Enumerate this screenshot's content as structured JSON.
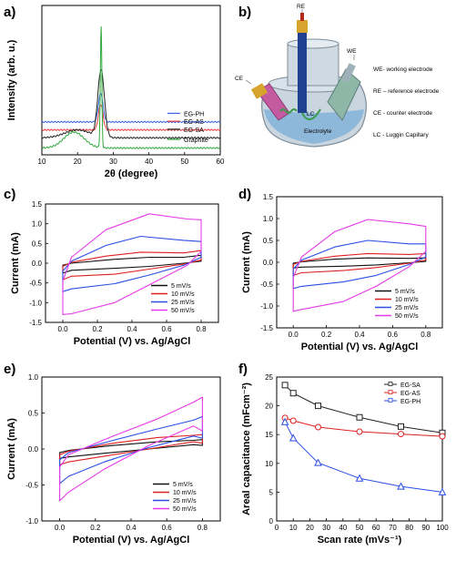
{
  "figure": {
    "panels": {
      "a": "a)",
      "b": "b)",
      "c": "c)",
      "d": "d)",
      "e": "e)",
      "f": "f)"
    },
    "schematic": {
      "RE": "RE",
      "WE": "WE",
      "CE": "CE",
      "LC": "LC",
      "electrolyte": "Electrolyte",
      "legend": [
        "WE- working electrode",
        "RE – reference electrode",
        "CE - counter electrode",
        "LC - Luggin Capillary"
      ]
    }
  },
  "chart_data": [
    {
      "id": "a",
      "type": "line",
      "xlabel": "2θ (degree)",
      "ylabel": "Intensity (arb. u.)",
      "xlim": [
        10,
        60
      ],
      "xticks": [
        10,
        20,
        30,
        40,
        50,
        60
      ],
      "yticks_shown": false,
      "series": [
        {
          "name": "EG-PH",
          "color": "#3a64e6",
          "baseline": 0.92,
          "peaks": [
            {
              "x": 26.5,
              "h": 0.9,
              "w": 0.9
            }
          ],
          "bumps": []
        },
        {
          "name": "EG-AS",
          "color": "#e23b3b",
          "baseline": 0.67,
          "peaks": [
            {
              "x": 26.5,
              "h": 0.8,
              "w": 0.9
            }
          ],
          "bumps": []
        },
        {
          "name": "EG-SA",
          "color": "#222222",
          "baseline": 0.42,
          "peaks": [
            {
              "x": 26.6,
              "h": 2.1,
              "w": 1.3
            }
          ],
          "bumps": [
            {
              "x": 20,
              "h": 0.25,
              "w": 5
            }
          ]
        },
        {
          "name": "Graphite",
          "color": "#2eaa3a",
          "baseline": 0.1,
          "peaks": [
            {
              "x": 26.6,
              "h": 3.8,
              "w": 0.3
            }
          ],
          "bumps": [
            {
              "x": 19,
              "h": 0.5,
              "w": 4
            }
          ]
        }
      ]
    },
    {
      "id": "c",
      "type": "line",
      "xlabel": "Potential (V) vs. Ag/AgCl",
      "ylabel": "Current (mA)",
      "xlim": [
        -0.1,
        0.9
      ],
      "ylim": [
        -1.5,
        1.5
      ],
      "xticks": [
        0.0,
        0.2,
        0.4,
        0.6,
        0.8
      ],
      "yticks": [
        -1.5,
        -1.0,
        -0.5,
        0.0,
        0.5,
        1.0,
        1.5
      ],
      "legend_position": "bottom-right",
      "series": [
        {
          "name": "5 mV/s",
          "color": "#111111",
          "loop": {
            "x0": 0.0,
            "x1": 0.8,
            "jump0": [
              -0.25,
              -0.05
            ],
            "jump1": [
              0.05,
              0.2
            ],
            "upper": [
              [
                0.05,
                0.0
              ],
              [
                0.3,
                0.1
              ],
              [
                0.5,
                0.15
              ],
              [
                0.7,
                0.15
              ]
            ],
            "lower": [
              [
                0.7,
                0.0
              ],
              [
                0.5,
                -0.08
              ],
              [
                0.3,
                -0.13
              ],
              [
                0.05,
                -0.18
              ]
            ]
          }
        },
        {
          "name": "10 mV/s",
          "color": "#e02020",
          "loop": {
            "x0": 0.0,
            "x1": 0.8,
            "jump0": [
              -0.42,
              -0.08
            ],
            "jump1": [
              0.08,
              0.32
            ],
            "upper": [
              [
                0.05,
                0.02
              ],
              [
                0.25,
                0.18
              ],
              [
                0.45,
                0.28
              ],
              [
                0.7,
                0.26
              ]
            ],
            "lower": [
              [
                0.7,
                -0.02
              ],
              [
                0.5,
                -0.15
              ],
              [
                0.3,
                -0.28
              ],
              [
                0.05,
                -0.33
              ]
            ]
          }
        },
        {
          "name": "25 mV/s",
          "color": "#2a4ee6",
          "loop": {
            "x0": 0.0,
            "x1": 0.8,
            "jump0": [
              -0.72,
              -0.2
            ],
            "jump1": [
              0.15,
              0.55
            ],
            "upper": [
              [
                0.05,
                0.05
              ],
              [
                0.25,
                0.45
              ],
              [
                0.45,
                0.68
              ],
              [
                0.7,
                0.58
              ]
            ],
            "lower": [
              [
                0.7,
                -0.05
              ],
              [
                0.5,
                -0.3
              ],
              [
                0.3,
                -0.52
              ],
              [
                0.05,
                -0.65
              ]
            ]
          }
        },
        {
          "name": "50 mV/s",
          "color": "#e63ae6",
          "loop": {
            "x0": 0.0,
            "x1": 0.8,
            "jump0": [
              -1.3,
              -0.45
            ],
            "jump1": [
              0.3,
              1.1
            ],
            "upper": [
              [
                0.05,
                0.15
              ],
              [
                0.25,
                0.85
              ],
              [
                0.5,
                1.25
              ],
              [
                0.72,
                1.12
              ]
            ],
            "lower": [
              [
                0.72,
                -0.05
              ],
              [
                0.5,
                -0.55
              ],
              [
                0.3,
                -1.0
              ],
              [
                0.05,
                -1.28
              ]
            ]
          }
        }
      ]
    },
    {
      "id": "d",
      "type": "line",
      "xlabel": "Potential (V) vs. Ag/AgCl",
      "ylabel": "Current (mA)",
      "xlim": [
        -0.1,
        0.9
      ],
      "ylim": [
        -1.5,
        1.5
      ],
      "xticks": [
        0.0,
        0.2,
        0.4,
        0.6,
        0.8
      ],
      "yticks": [
        -1.5,
        -1.0,
        -0.5,
        0.0,
        0.5,
        1.0,
        1.5
      ],
      "legend_position": "bottom-right",
      "series": [
        {
          "name": "5 mV/s",
          "color": "#111111",
          "loop": {
            "x0": 0.0,
            "x1": 0.8,
            "jump0": [
              -0.13,
              -0.02
            ],
            "jump1": [
              0.02,
              0.1
            ],
            "upper": [
              [
                0.05,
                0.01
              ],
              [
                0.25,
                0.07
              ],
              [
                0.45,
                0.1
              ],
              [
                0.7,
                0.09
              ]
            ],
            "lower": [
              [
                0.7,
                -0.01
              ],
              [
                0.5,
                -0.06
              ],
              [
                0.3,
                -0.09
              ],
              [
                0.05,
                -0.11
              ]
            ]
          }
        },
        {
          "name": "10 mV/s",
          "color": "#e02020",
          "loop": {
            "x0": 0.0,
            "x1": 0.8,
            "jump0": [
              -0.3,
              -0.05
            ],
            "jump1": [
              0.05,
              0.2
            ],
            "upper": [
              [
                0.05,
                0.02
              ],
              [
                0.25,
                0.14
              ],
              [
                0.45,
                0.2
              ],
              [
                0.7,
                0.18
              ]
            ],
            "lower": [
              [
                0.7,
                -0.02
              ],
              [
                0.5,
                -0.12
              ],
              [
                0.3,
                -0.19
              ],
              [
                0.05,
                -0.24
              ]
            ]
          }
        },
        {
          "name": "25 mV/s",
          "color": "#2a4ee6",
          "loop": {
            "x0": 0.0,
            "x1": 0.8,
            "jump0": [
              -0.6,
              -0.15
            ],
            "jump1": [
              0.12,
              0.42
            ],
            "upper": [
              [
                0.05,
                0.05
              ],
              [
                0.25,
                0.35
              ],
              [
                0.45,
                0.5
              ],
              [
                0.7,
                0.42
              ]
            ],
            "lower": [
              [
                0.7,
                -0.05
              ],
              [
                0.5,
                -0.3
              ],
              [
                0.3,
                -0.45
              ],
              [
                0.05,
                -0.55
              ]
            ]
          }
        },
        {
          "name": "50 mV/s",
          "color": "#e63ae6",
          "loop": {
            "x0": 0.0,
            "x1": 0.8,
            "jump0": [
              -1.12,
              -0.35
            ],
            "jump1": [
              0.25,
              0.82
            ],
            "upper": [
              [
                0.05,
                0.12
              ],
              [
                0.25,
                0.7
              ],
              [
                0.45,
                0.98
              ],
              [
                0.7,
                0.88
              ]
            ],
            "lower": [
              [
                0.7,
                -0.1
              ],
              [
                0.5,
                -0.55
              ],
              [
                0.3,
                -0.9
              ],
              [
                0.05,
                -1.08
              ]
            ]
          }
        }
      ]
    },
    {
      "id": "e",
      "type": "line",
      "xlabel": "Potential (V) vs. Ag/AgCl",
      "ylabel": "Current (mA)",
      "xlim": [
        -0.1,
        0.9
      ],
      "ylim": [
        -1.0,
        1.0
      ],
      "xticks": [
        0.0,
        0.2,
        0.4,
        0.6,
        0.8
      ],
      "yticks": [
        -1.0,
        -0.5,
        0.0,
        0.5,
        1.0
      ],
      "legend_position": "bottom-right",
      "series": [
        {
          "name": "5 mV/s",
          "color": "#111111",
          "loop": {
            "x0": 0.0,
            "x1": 0.8,
            "jump0": [
              -0.13,
              -0.05
            ],
            "jump1": [
              0.05,
              0.13
            ],
            "upper": [
              [
                0.05,
                -0.02
              ],
              [
                0.3,
                0.05
              ],
              [
                0.55,
                0.1
              ],
              [
                0.75,
                0.12
              ]
            ],
            "lower": [
              [
                0.75,
                0.06
              ],
              [
                0.5,
                0.0
              ],
              [
                0.25,
                -0.06
              ],
              [
                0.05,
                -0.11
              ]
            ]
          }
        },
        {
          "name": "10 mV/s",
          "color": "#e02020",
          "loop": {
            "x0": 0.0,
            "x1": 0.8,
            "jump0": [
              -0.22,
              -0.08
            ],
            "jump1": [
              0.08,
              0.2
            ],
            "upper": [
              [
                0.05,
                -0.03
              ],
              [
                0.3,
                0.08
              ],
              [
                0.55,
                0.16
              ],
              [
                0.75,
                0.19
              ]
            ],
            "lower": [
              [
                0.75,
                0.1
              ],
              [
                0.5,
                0.0
              ],
              [
                0.25,
                -0.1
              ],
              [
                0.05,
                -0.18
              ]
            ]
          }
        },
        {
          "name": "25 mV/s",
          "color": "#2a4ee6",
          "loop": {
            "x0": 0.0,
            "x1": 0.8,
            "jump0": [
              -0.48,
              -0.15
            ],
            "jump1": [
              0.15,
              0.45
            ],
            "upper": [
              [
                0.05,
                -0.05
              ],
              [
                0.3,
                0.12
              ],
              [
                0.55,
                0.28
              ],
              [
                0.75,
                0.4
              ]
            ],
            "lower": [
              [
                0.75,
                0.18
              ],
              [
                0.5,
                0.02
              ],
              [
                0.25,
                -0.18
              ],
              [
                0.05,
                -0.38
              ]
            ]
          }
        },
        {
          "name": "50 mV/s",
          "color": "#e63ae6",
          "loop": {
            "x0": 0.0,
            "x1": 0.8,
            "jump0": [
              -0.72,
              -0.25
            ],
            "jump1": [
              0.25,
              0.72
            ],
            "upper": [
              [
                0.05,
                -0.08
              ],
              [
                0.3,
                0.18
              ],
              [
                0.55,
                0.42
              ],
              [
                0.75,
                0.65
              ]
            ],
            "lower": [
              [
                0.75,
                0.32
              ],
              [
                0.5,
                0.05
              ],
              [
                0.25,
                -0.28
              ],
              [
                0.05,
                -0.6
              ]
            ]
          }
        }
      ]
    },
    {
      "id": "f",
      "type": "line",
      "xlabel": "Scan rate (mVs⁻¹)",
      "ylabel": "Areal capacitance (mFcm⁻²)",
      "xlim": [
        0,
        100
      ],
      "ylim": [
        0,
        25
      ],
      "xticks": [
        0,
        10,
        20,
        30,
        40,
        50,
        60,
        70,
        80,
        90,
        100
      ],
      "yticks": [
        0,
        5,
        10,
        15,
        20,
        25
      ],
      "legend_position": "top-right",
      "series": [
        {
          "name": "EG-SA",
          "color": "#222222",
          "marker": "square",
          "x": [
            5,
            10,
            25,
            50,
            75,
            100
          ],
          "y": [
            23.6,
            22.2,
            20.0,
            18.0,
            16.4,
            15.3
          ]
        },
        {
          "name": "EG-AS",
          "color": "#e02020",
          "marker": "circle",
          "x": [
            5,
            10,
            25,
            50,
            75,
            100
          ],
          "y": [
            17.9,
            17.4,
            16.3,
            15.5,
            15.1,
            14.7
          ]
        },
        {
          "name": "EG-PH",
          "color": "#2a4ee6",
          "marker": "triangle",
          "x": [
            5,
            10,
            25,
            50,
            75,
            100
          ],
          "y": [
            17.2,
            14.4,
            10.1,
            7.4,
            6.0,
            5.0
          ]
        }
      ]
    }
  ]
}
